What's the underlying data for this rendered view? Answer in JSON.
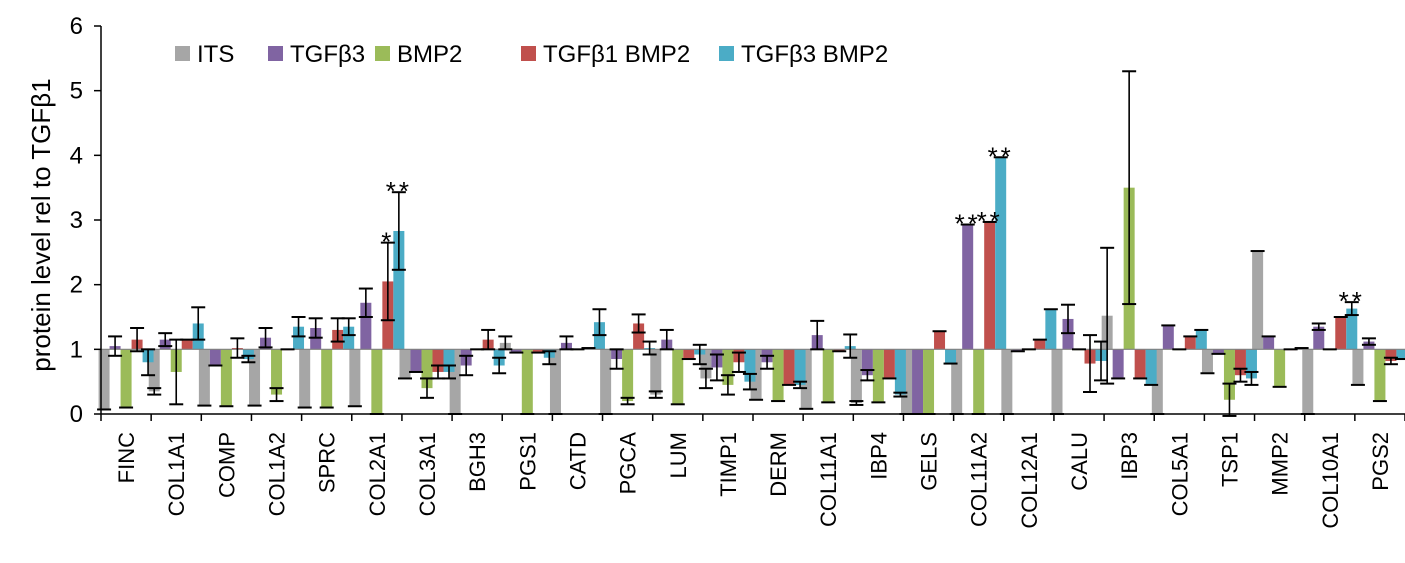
{
  "chart_data": {
    "type": "bar",
    "title": "",
    "xlabel": "",
    "ylabel": "protein level rel to TGFβ1",
    "ylim": [
      0,
      6
    ],
    "yticks": [
      "0",
      "1",
      "2",
      "3",
      "4",
      "5",
      "6"
    ],
    "baseline": 1,
    "grid": false,
    "legend_position": "top-left",
    "categories": [
      "FINC",
      "COL1A1",
      "COMP",
      "COL1A2",
      "SPRC",
      "COL2A1",
      "COL3A1",
      "BGH3",
      "PGS1",
      "CATD",
      "PGCA",
      "LUM",
      "TIMP1",
      "DERM",
      "COL11A1",
      "IBP4",
      "GELS",
      "COL11A2",
      "COL12A1",
      "CALU",
      "IBP3",
      "COL5A1",
      "TSP1",
      "MMP2",
      "COL10A1",
      "PGS2"
    ],
    "series": [
      {
        "name": "ITS",
        "color": "#a6a6a6",
        "values": [
          0.07,
          0.35,
          0.13,
          0.13,
          0.1,
          0.12,
          0.55,
          0.0,
          1.1,
          0.0,
          0.0,
          0.3,
          0.55,
          0.22,
          0.08,
          0.17,
          0.0,
          0.0,
          0.0,
          0.0,
          1.52,
          0.0,
          0.63,
          2.52,
          0.0,
          0.45
        ],
        "errors": [
          0.0,
          0.05,
          0.0,
          0.0,
          0.0,
          0.0,
          0.0,
          0.0,
          0.1,
          0.0,
          0.0,
          0.05,
          0.15,
          0.0,
          0.0,
          0.03,
          0.0,
          0.0,
          0.0,
          0.0,
          1.05,
          0.0,
          0.0,
          0.0,
          0.0,
          0.0
        ]
      },
      {
        "name": "TGFβ3",
        "color": "#8064a2",
        "values": [
          1.05,
          1.15,
          0.75,
          1.18,
          1.33,
          1.72,
          0.65,
          0.75,
          0.95,
          1.1,
          0.85,
          1.15,
          0.72,
          0.8,
          1.22,
          0.6,
          0.0,
          2.93,
          0.97,
          1.47,
          0.55,
          1.37,
          0.93,
          1.2,
          1.35,
          1.12
        ],
        "errors": [
          0.15,
          0.1,
          0.0,
          0.15,
          0.15,
          0.22,
          0.0,
          0.15,
          0.0,
          0.1,
          0.15,
          0.15,
          0.2,
          0.1,
          0.22,
          0.08,
          0.0,
          0.0,
          0.0,
          0.22,
          0.0,
          0.0,
          0.0,
          0.0,
          0.05,
          0.05
        ]
      },
      {
        "name": "BMP2",
        "color": "#9bbb59",
        "values": [
          0.1,
          0.65,
          0.12,
          0.3,
          0.1,
          0.0,
          0.4,
          1.0,
          0.0,
          1.0,
          0.2,
          0.15,
          0.45,
          0.2,
          0.18,
          0.18,
          0.0,
          0.0,
          1.0,
          1.0,
          3.5,
          1.0,
          0.22,
          0.42,
          1.0,
          0.2
        ],
        "errors": [
          0.0,
          0.5,
          0.0,
          0.1,
          0.0,
          0.0,
          0.15,
          0.0,
          0.0,
          0.0,
          0.05,
          0.0,
          0.15,
          0.0,
          0.0,
          0.0,
          0.0,
          0.0,
          0.0,
          0.0,
          1.8,
          0.0,
          0.25,
          0.0,
          0.0,
          0.0
        ]
      },
      {
        "name": "TGFβ1 BMP2",
        "color": "#c0504d",
        "values": [
          1.15,
          1.15,
          1.02,
          1.0,
          1.3,
          2.05,
          0.65,
          1.15,
          0.95,
          1.02,
          1.4,
          0.85,
          0.8,
          0.45,
          0.97,
          0.55,
          1.28,
          2.97,
          1.15,
          0.78,
          0.55,
          1.2,
          0.6,
          1.0,
          1.5,
          0.82
        ],
        "errors": [
          0.18,
          0.0,
          0.15,
          0.0,
          0.18,
          0.6,
          0.1,
          0.15,
          0.0,
          0.0,
          0.14,
          0.0,
          0.15,
          0.0,
          0.0,
          0.0,
          0.0,
          0.0,
          0.0,
          0.44,
          0.0,
          0.0,
          0.1,
          0.0,
          0.0,
          0.05
        ]
      },
      {
        "name": "TGFβ3 BMP2",
        "color": "#4bacc6",
        "values": [
          0.8,
          1.4,
          0.85,
          1.35,
          1.35,
          2.83,
          0.65,
          0.75,
          0.87,
          1.42,
          1.02,
          0.92,
          0.5,
          0.45,
          1.05,
          0.3,
          0.78,
          3.97,
          1.62,
          0.82,
          0.45,
          1.3,
          0.55,
          1.02,
          1.63,
          0.85
        ],
        "errors": [
          0.2,
          0.25,
          0.05,
          0.15,
          0.13,
          0.6,
          0.1,
          0.12,
          0.1,
          0.2,
          0.1,
          0.15,
          0.12,
          0.05,
          0.18,
          0.03,
          0.0,
          0.0,
          0.0,
          0.3,
          0.0,
          0.0,
          0.1,
          0.0,
          0.1,
          0.0
        ]
      }
    ],
    "annotations": [
      {
        "category": "COL2A1",
        "series": "TGFβ1 BMP2",
        "text": "*"
      },
      {
        "category": "COL2A1",
        "series": "TGFβ3 BMP2",
        "text": "**"
      },
      {
        "category": "COL11A2",
        "series": "TGFβ3",
        "text": "**"
      },
      {
        "category": "COL11A2",
        "series": "TGFβ1 BMP2",
        "text": "**"
      },
      {
        "category": "COL11A2",
        "series": "TGFβ3 BMP2",
        "text": "**"
      },
      {
        "category": "COL10A1",
        "series": "TGFβ3 BMP2",
        "text": "**"
      }
    ]
  }
}
